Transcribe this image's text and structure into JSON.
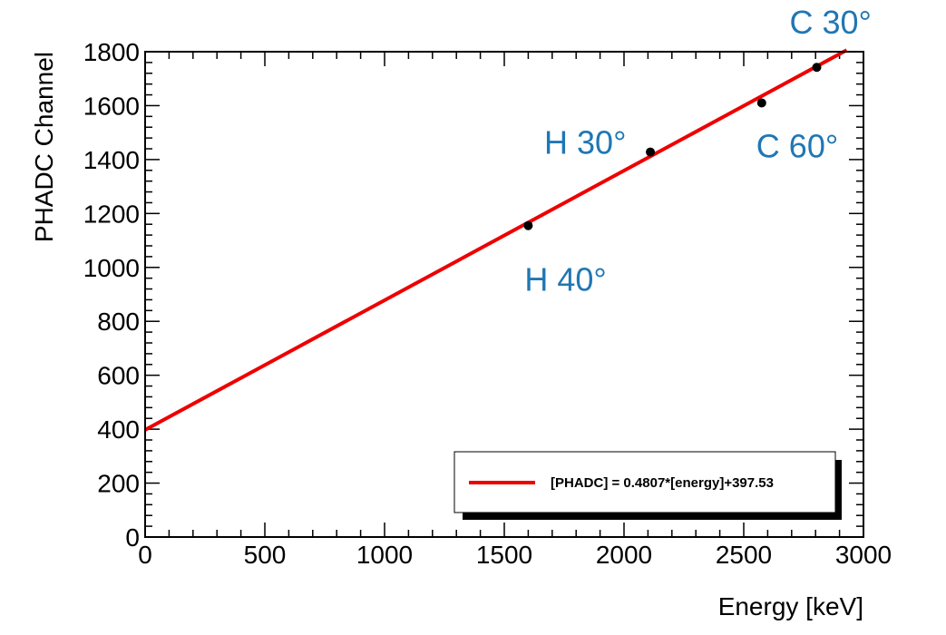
{
  "chart_data": {
    "type": "scatter",
    "xlabel": "Energy [keV]",
    "ylabel": "PHADC Channel",
    "xlim": [
      0,
      3000
    ],
    "ylim": [
      0,
      1800
    ],
    "x_ticks": [
      0,
      500,
      1000,
      1500,
      2000,
      2500,
      3000
    ],
    "y_ticks": [
      0,
      200,
      400,
      600,
      800,
      1000,
      1200,
      1400,
      1600,
      1800
    ],
    "grid": false,
    "points": [
      {
        "x": 1600,
        "y": 1155
      },
      {
        "x": 2110,
        "y": 1428
      },
      {
        "x": 2575,
        "y": 1610
      },
      {
        "x": 2805,
        "y": 1742
      }
    ],
    "fit": {
      "slope": 0.4807,
      "intercept": 397.53,
      "x_range": [
        0,
        2930
      ],
      "color": "#ee0000"
    },
    "annotations": [
      {
        "text": "H 40°",
        "x": 1600,
        "y": 1155
      },
      {
        "text": "H 30°",
        "x": 2110,
        "y": 1428
      },
      {
        "text": "C 60°",
        "x": 2575,
        "y": 1610
      },
      {
        "text": "C 30°",
        "x": 2805,
        "y": 1742
      }
    ],
    "legend": {
      "placement": "bottom-right",
      "entries": [
        {
          "label": "[PHADC] = 0.4807*[energy]+397.53",
          "color": "#ee0000"
        }
      ]
    },
    "annotation_color": "#1f77b4",
    "point_color": "#000000"
  }
}
